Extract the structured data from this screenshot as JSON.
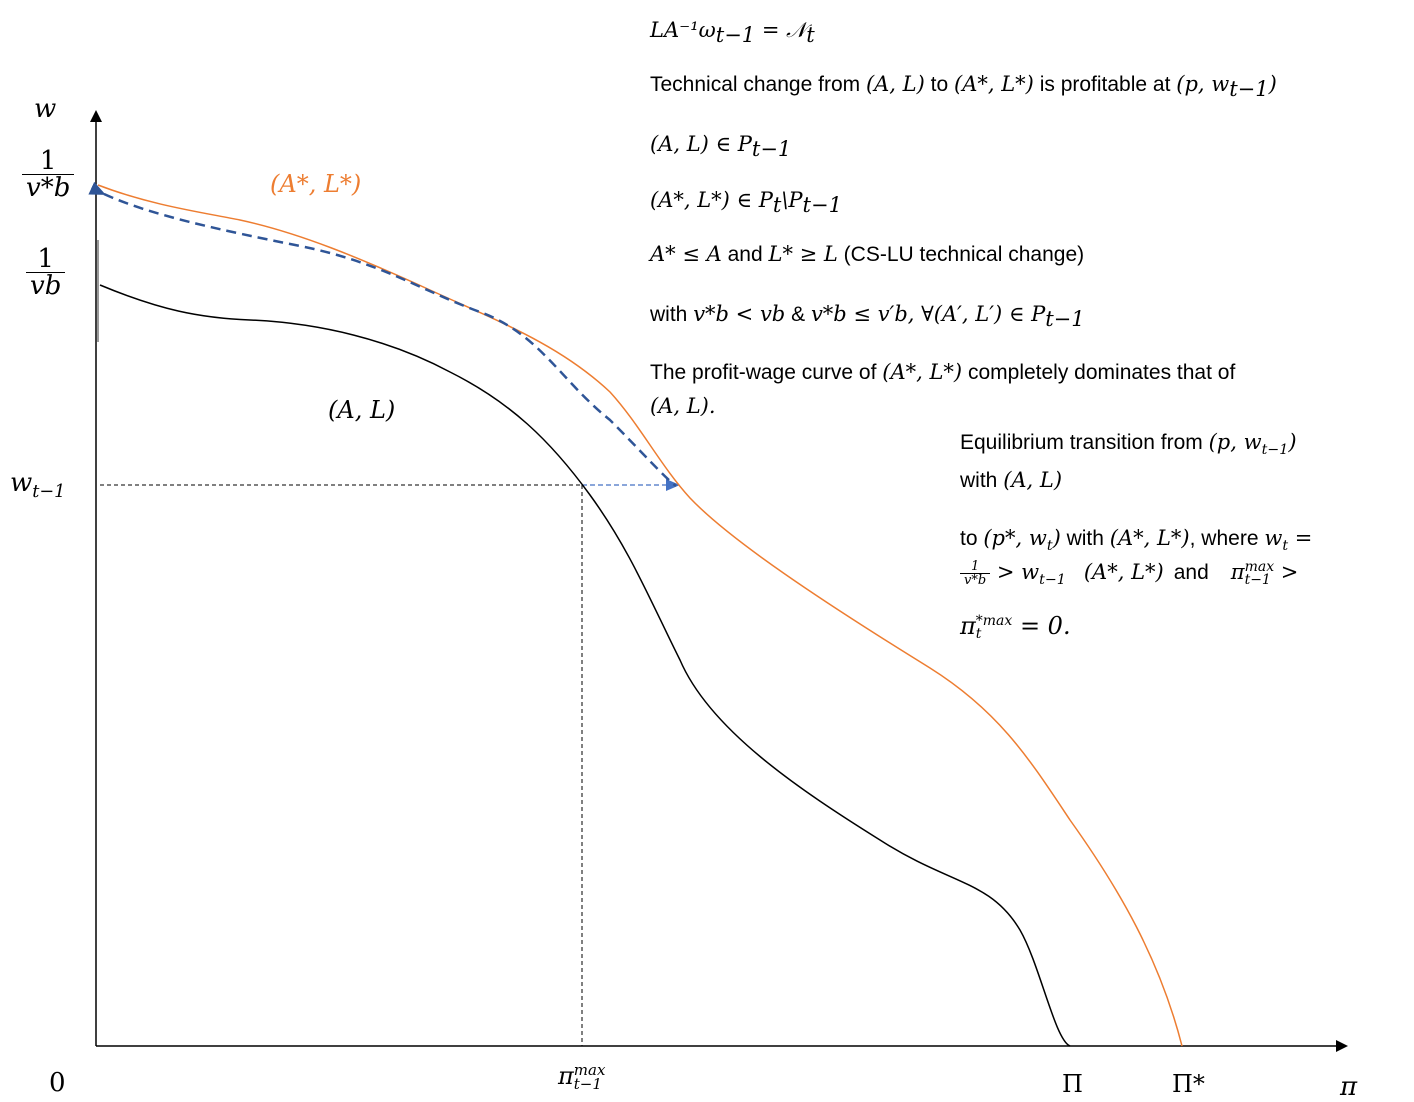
{
  "axes": {
    "y_label": "w",
    "x_label": "π",
    "origin": "0",
    "y_tick_top_num": "1",
    "y_tick_top_den": "v*b",
    "y_tick_mid_num": "1",
    "y_tick_mid_den": "vb",
    "y_tick_wage": "w",
    "y_tick_wage_sub": "t−1",
    "x_tick_pimax": "π",
    "x_tick_pimax_sup": "max",
    "x_tick_pimax_sub": "t−1",
    "x_tick_Pi": "Π",
    "x_tick_Pistar": "Π*"
  },
  "curves": {
    "new_label": "(A*, L*)",
    "old_label": "(A, L)",
    "new_color": "#ED7D31",
    "old_color": "#000000",
    "arrow_color": "#2F5597",
    "guide_arrow_color": "#4472C4"
  },
  "chart_data": {
    "type": "line",
    "xlabel": "π",
    "ylabel": "w",
    "x_ticks": [
      "π^max_t−1",
      "Π",
      "Π*"
    ],
    "y_ticks": [
      "1/(v*b)",
      "1/(vb)",
      "w_t−1"
    ],
    "series": [
      {
        "name": "(A*, L*)",
        "x": [
          0,
          0.1,
          0.2,
          0.3,
          0.4,
          0.5,
          0.6,
          0.7,
          0.8,
          0.9,
          1.0
        ],
        "y": [
          1.0,
          0.97,
          0.95,
          0.9,
          0.83,
          0.74,
          0.62,
          0.52,
          0.45,
          0.36,
          0.0
        ]
      },
      {
        "name": "(A, L)",
        "x": [
          0,
          0.1,
          0.2,
          0.3,
          0.4,
          0.5,
          0.6,
          0.7,
          0.8,
          0.9,
          1.0
        ],
        "y": [
          0.81,
          0.78,
          0.76,
          0.71,
          0.6,
          0.42,
          0.3,
          0.24,
          0.2,
          0.12,
          0.0
        ]
      }
    ]
  },
  "notes": {
    "n1": "LA⁻¹ω",
    "n1_sub": "t−1",
    "n1_rhs": " = 𝒩",
    "n1_rhs_sub": "t",
    "n2_a": "Technical change from ",
    "n2_m1": "(A, L)",
    "n2_b": " to ",
    "n2_m2": "(A*, L*)",
    "n2_c": " is profitable at ",
    "n2_m3": "(p, w",
    "n2_m3_sub": "t−1",
    "n2_m3_end": ")",
    "n3_m": "(A, L) ∈ P",
    "n3_sub": "t−1",
    "n4_m": "(A*, L*) ∈ P",
    "n4_sub1": "t",
    "n4_mid": "\\P",
    "n4_sub2": "t−1",
    "n5_m1": "A* ≤ A",
    "n5_and": " and ",
    "n5_m2": "L* ≥ L",
    "n5_tail": " (CS-LU technical change)",
    "n6_a": "with ",
    "n6_m1": "v*b < vb",
    "n6_amp": " & ",
    "n6_m2": "v*b ≤ v′b, ∀(A′, L′) ∈ P",
    "n6_sub": "t−1",
    "n7_a": "The profit-wage curve of ",
    "n7_m": "(A*, L*)",
    "n7_b": " completely dominates that of",
    "n7_c": "(A, L)."
  },
  "eq": {
    "l1_a": "Equilibrium transition from ",
    "l1_m": "(p, w",
    "l1_sub": "t−1",
    "l1_end": ")",
    "l2_a": "with ",
    "l2_m": "(A, L)",
    "l3_a": "to ",
    "l3_m1": "(p*, w",
    "l3_sub1": "t",
    "l3_end1": ")",
    "l3_b": " with ",
    "l3_m2": "(A*, L*)",
    "l3_c": ", where ",
    "l3_m3": "w",
    "l3_sub3": "t",
    "l3_eqs": " =",
    "l4_num": "1",
    "l4_den": "v*b",
    "l4_gt": " > w",
    "l4_sub": "t−1",
    "l4_m2": "(A*, L*)",
    "l4_and": "and",
    "l4_pi": "π",
    "l4_pi_sup": "max",
    "l4_pi_sub": "t−1",
    "l4_gt2": " >",
    "l5_pi": "π",
    "l5_sup": "*max",
    "l5_sub": "t",
    "l5_tail": " = 0."
  }
}
